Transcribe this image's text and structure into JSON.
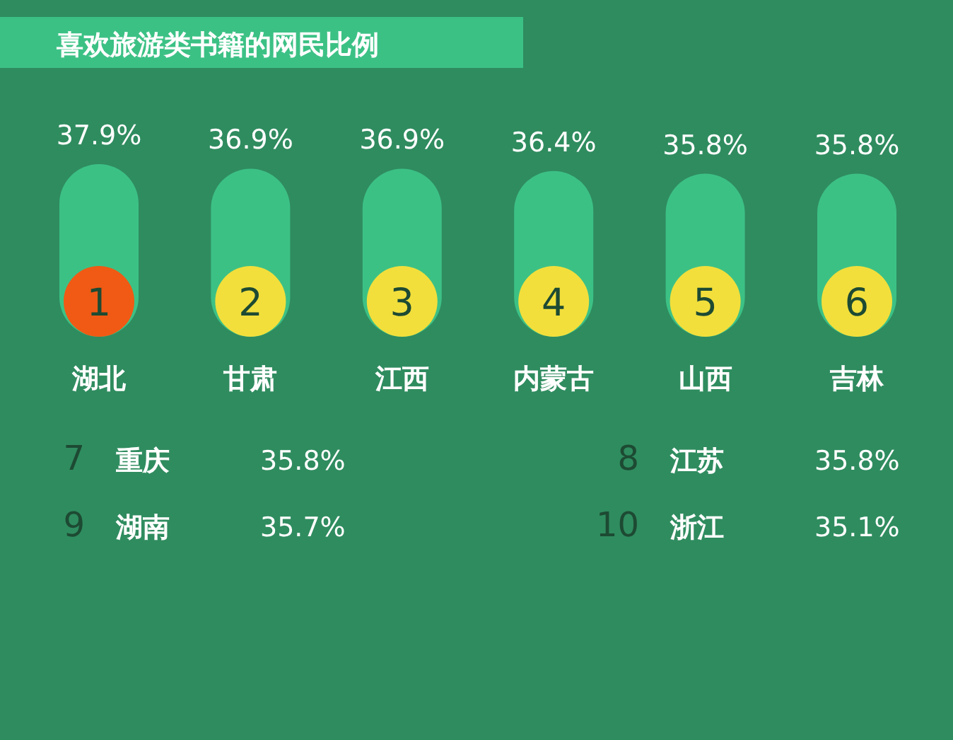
{
  "chart_data": {
    "type": "bar",
    "title": "喜欢旅游类书籍的网民比例",
    "categories": [
      "湖北",
      "甘肃",
      "江西",
      "内蒙古",
      "山西",
      "吉林"
    ],
    "values": [
      37.9,
      36.9,
      36.9,
      36.4,
      35.8,
      35.8
    ],
    "value_labels": [
      "37.9%",
      "36.9%",
      "36.9%",
      "36.4%",
      "35.8%",
      "35.8%"
    ],
    "color": "#3cc185",
    "annotations": [
      "1",
      "2",
      "3",
      "4",
      "5",
      "6",
      "7 重庆 35.8%",
      "8 江苏 35.8%",
      "9 湖南 35.7%",
      "10 浙江 35.1%"
    ]
  }
}
